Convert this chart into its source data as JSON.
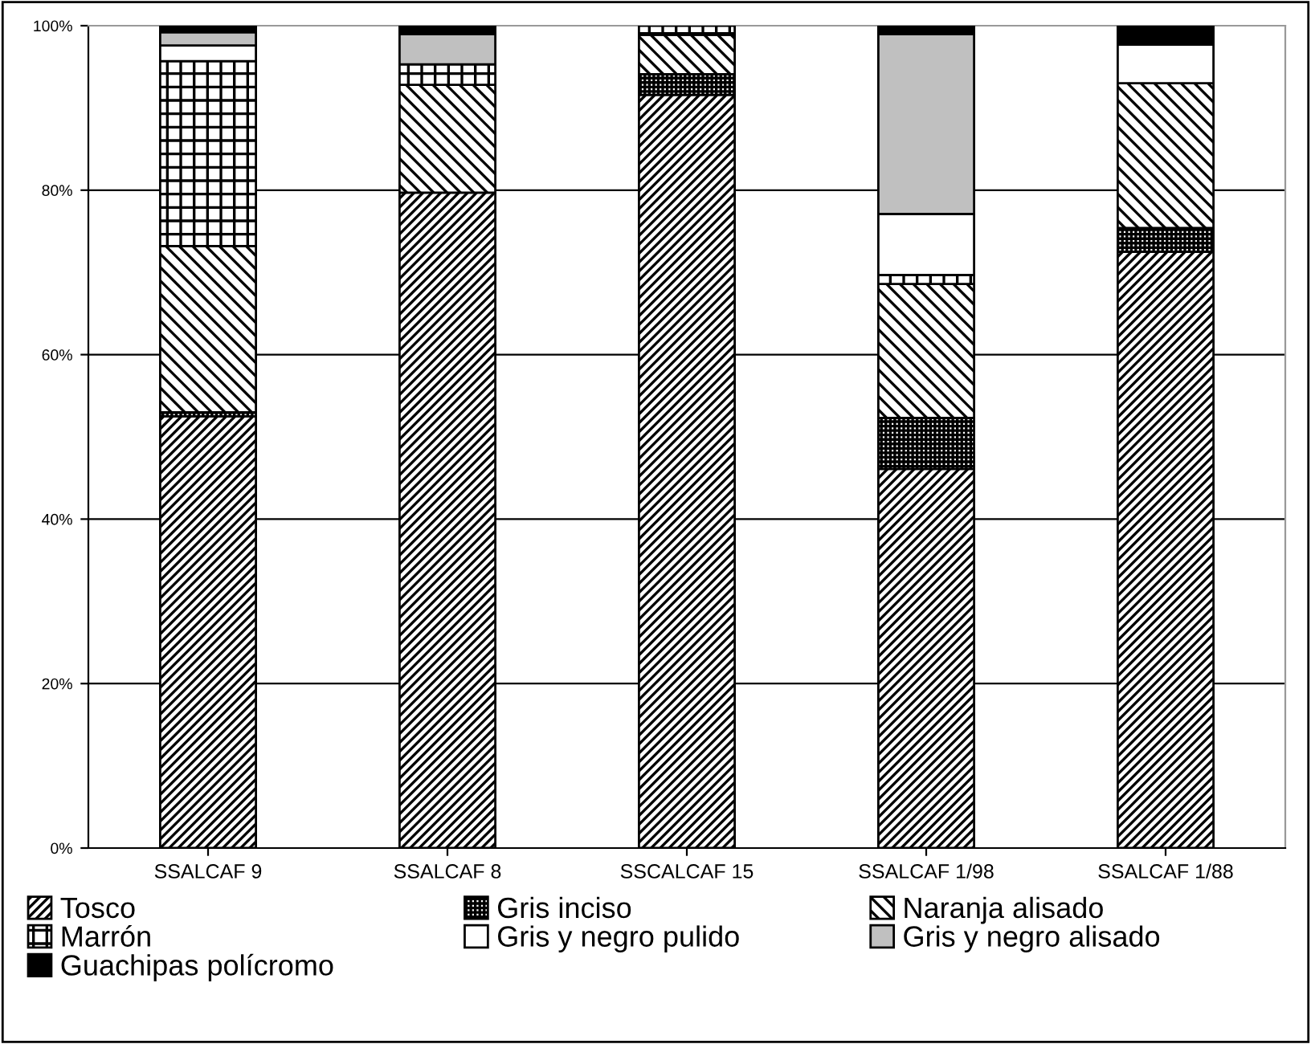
{
  "chart_data": {
    "type": "bar",
    "stacked": true,
    "categories": [
      "SSALCAF 9",
      "SSALCAF 8",
      "SSCALCAF 15",
      "SSALCAF 1/98",
      "SSALCAF 1/88"
    ],
    "series": [
      {
        "name": "Tosco",
        "color": "#000000",
        "values": [
          52.5,
          79.7,
          91.6,
          46.1,
          72.5
        ]
      },
      {
        "name": "Gris inciso",
        "color": "#000000",
        "values": [
          0.5,
          null,
          2.5,
          6.2,
          2.9
        ]
      },
      {
        "name": "Naranja alisado",
        "color": "#000000",
        "values": [
          20.2,
          13.1,
          4.8,
          16.3,
          17.6
        ]
      },
      {
        "name": "Marrón",
        "color": "#000000",
        "values": [
          22.5,
          2.5,
          1.1,
          1.1,
          null
        ]
      },
      {
        "name": "Gris y negro pulido",
        "color": "#ffffff",
        "values": [
          1.9,
          null,
          null,
          7.4,
          4.7
        ]
      },
      {
        "name": "Gris y negro alisado",
        "color": "#c0c0c0",
        "values": [
          1.6,
          3.7,
          null,
          21.9,
          null
        ]
      },
      {
        "name": "Guachipas polícromo",
        "color": "#000000",
        "values": [
          0.8,
          1.0,
          null,
          1.0,
          2.3
        ]
      }
    ],
    "ylim": [
      0,
      100
    ],
    "yticks": [
      {
        "value": 0,
        "label": "0%"
      },
      {
        "value": 20,
        "label": "20%"
      },
      {
        "value": 40,
        "label": "40%"
      },
      {
        "value": 60,
        "label": "60%"
      },
      {
        "value": 80,
        "label": "80%"
      },
      {
        "value": 100,
        "label": "100%"
      }
    ],
    "grid": "y",
    "legend": "bottom"
  }
}
